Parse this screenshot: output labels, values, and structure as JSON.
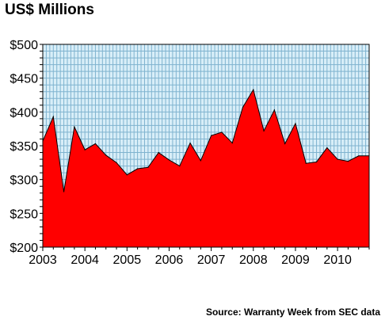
{
  "chart_data": {
    "type": "area",
    "title": "US$ Millions",
    "source": "Source: Warranty Week from SEC data",
    "xlabel": "",
    "ylabel": "",
    "x_tick_labels": [
      "2003",
      "2004",
      "2005",
      "2006",
      "2007",
      "2008",
      "2009",
      "2010"
    ],
    "y_tick_labels": [
      "$200",
      "$250",
      "$300",
      "$350",
      "$400",
      "$450",
      "$500"
    ],
    "y_ticks": [
      200,
      250,
      300,
      350,
      400,
      450,
      500
    ],
    "ylim": [
      200,
      500
    ],
    "xlim": [
      2003,
      2010.75
    ],
    "grid": true,
    "legend": "none",
    "series": [
      {
        "x": [
          2003.0,
          2003.25,
          2003.5,
          2003.75,
          2004.0,
          2004.25,
          2004.5,
          2004.75,
          2005.0,
          2005.25,
          2005.5,
          2005.75,
          2006.0,
          2006.25,
          2006.5,
          2006.75,
          2007.0,
          2007.25,
          2007.5,
          2007.75,
          2008.0,
          2008.25,
          2008.5,
          2008.75,
          2009.0,
          2009.25,
          2009.5,
          2009.75,
          2010.0,
          2010.25,
          2010.5,
          2010.75
        ],
        "values": [
          357,
          393,
          282,
          378,
          344,
          353,
          336,
          325,
          307,
          316,
          318,
          340,
          329,
          320,
          354,
          328,
          365,
          370,
          354,
          407,
          433,
          372,
          403,
          353,
          383,
          324,
          326,
          347,
          330,
          327,
          335,
          335
        ]
      }
    ],
    "colors": {
      "fill": "#ff0000",
      "outline": "#000000",
      "plot_background": "#d8eef8",
      "grid": "#7fb3cf"
    }
  }
}
